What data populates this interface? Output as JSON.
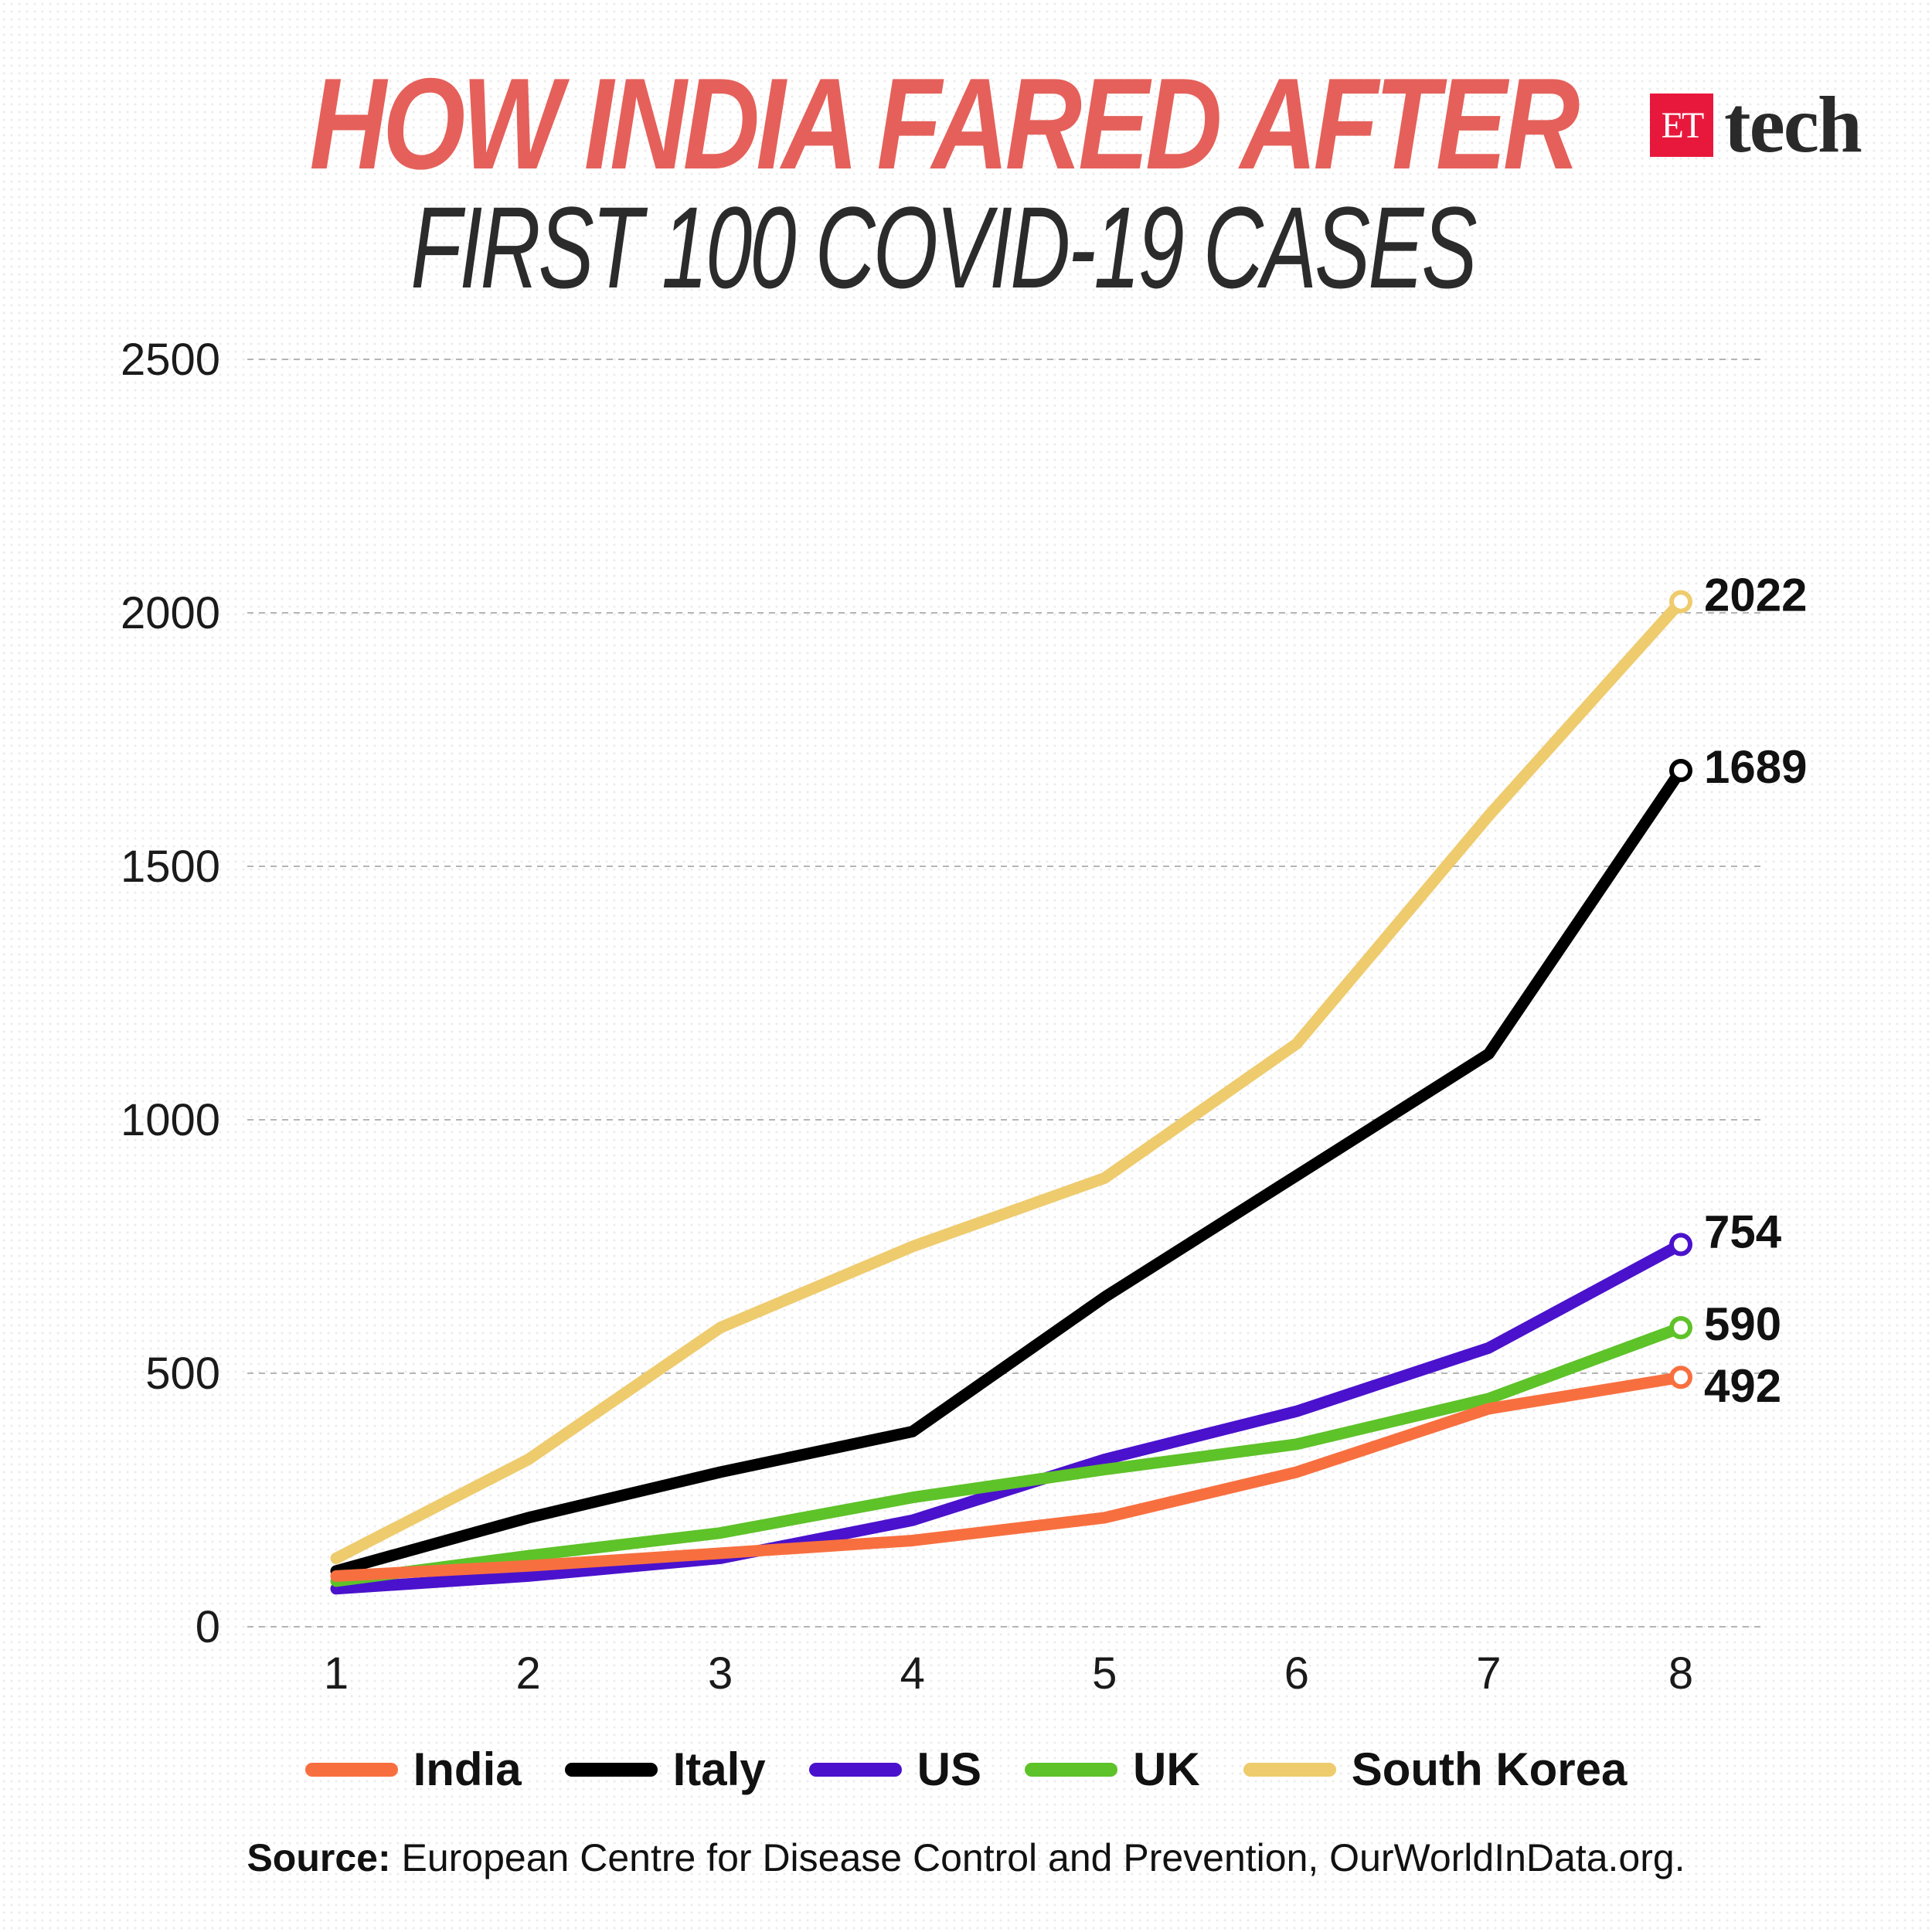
{
  "header": {
    "title": "HOW INDIA FARED AFTER",
    "subtitle": "FIRST 100 COVID-19 CASES",
    "title_color": "#e5605a",
    "subtitle_color": "#2b2b2b"
  },
  "logo": {
    "badge_text": "ET",
    "word": "tech",
    "badge_color": "#e8183d"
  },
  "chart_data": {
    "type": "line",
    "x": [
      1,
      2,
      3,
      4,
      5,
      6,
      7,
      8
    ],
    "xlim": [
      1,
      8
    ],
    "ylim": [
      0,
      2500
    ],
    "y_ticks": [
      0,
      500,
      1000,
      1500,
      2000,
      2500
    ],
    "grid": true,
    "legend_position": "bottom",
    "series": [
      {
        "name": "India",
        "color": "#f86f3f",
        "values": [
          100,
          120,
          145,
          170,
          215,
          305,
          430,
          492
        ]
      },
      {
        "name": "Italy",
        "color": "#000000",
        "values": [
          110,
          215,
          305,
          385,
          650,
          890,
          1130,
          1689
        ]
      },
      {
        "name": "US",
        "color": "#4a12cc",
        "values": [
          75,
          100,
          135,
          210,
          330,
          425,
          550,
          754
        ]
      },
      {
        "name": "UK",
        "color": "#5ec229",
        "values": [
          90,
          140,
          185,
          255,
          310,
          360,
          450,
          590
        ]
      },
      {
        "name": "South Korea",
        "color": "#eecb6d",
        "values": [
          135,
          330,
          590,
          750,
          885,
          1150,
          1600,
          2022
        ]
      }
    ],
    "end_labels": [
      "492",
      "1689",
      "754",
      "590",
      "2022"
    ]
  },
  "source": {
    "label": "Source:",
    "text": " European Centre for Disease Control and Prevention, OurWorldInData.org."
  }
}
